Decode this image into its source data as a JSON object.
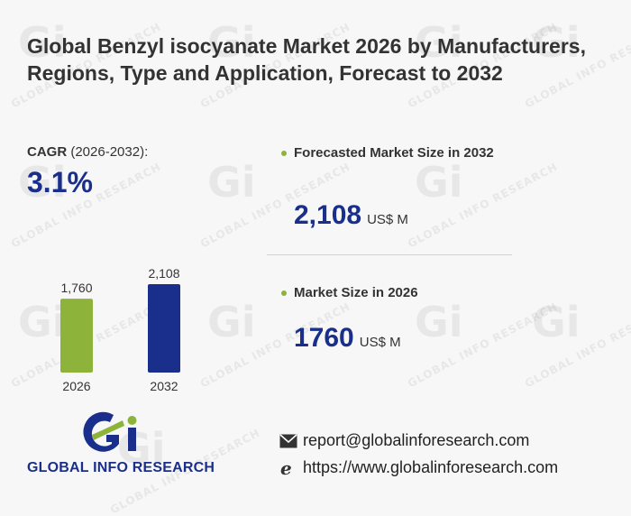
{
  "title": "Global Benzyl isocyanate Market 2026 by Manufacturers, Regions, Type and Application, Forecast to 2032",
  "cagr": {
    "label_bold": "CAGR",
    "label_rest": " (2026-2032):",
    "value": "3.1%"
  },
  "metrics": [
    {
      "label": "Forecasted Market Size in 2032",
      "value": "2,108",
      "unit": "US$ M"
    },
    {
      "label": "Market Size in 2026",
      "value": "1760",
      "unit": "US$ M"
    }
  ],
  "chart_data": {
    "type": "bar",
    "categories": [
      "2026",
      "2032"
    ],
    "values": [
      1760,
      2108
    ],
    "value_labels": [
      "1,760",
      "2,108"
    ],
    "colors": [
      "#8db33a",
      "#1a2f8c"
    ],
    "ylim": [
      0,
      2300
    ],
    "title": "",
    "xlabel": "",
    "ylabel": "",
    "grid": false
  },
  "logo": {
    "mark": "Gi",
    "text": "GLOBAL INFO RESEARCH"
  },
  "contact": {
    "email": "report@globalinforesearch.com",
    "website": "https://www.globalinforesearch.com",
    "email_icon": "envelope-icon",
    "web_icon": "browser-e-icon"
  },
  "watermark": {
    "mark": "Gi",
    "text": "GLOBAL INFO RESEARCH"
  },
  "colors": {
    "accent_blue": "#1a2f8c",
    "accent_green": "#8db33a"
  }
}
